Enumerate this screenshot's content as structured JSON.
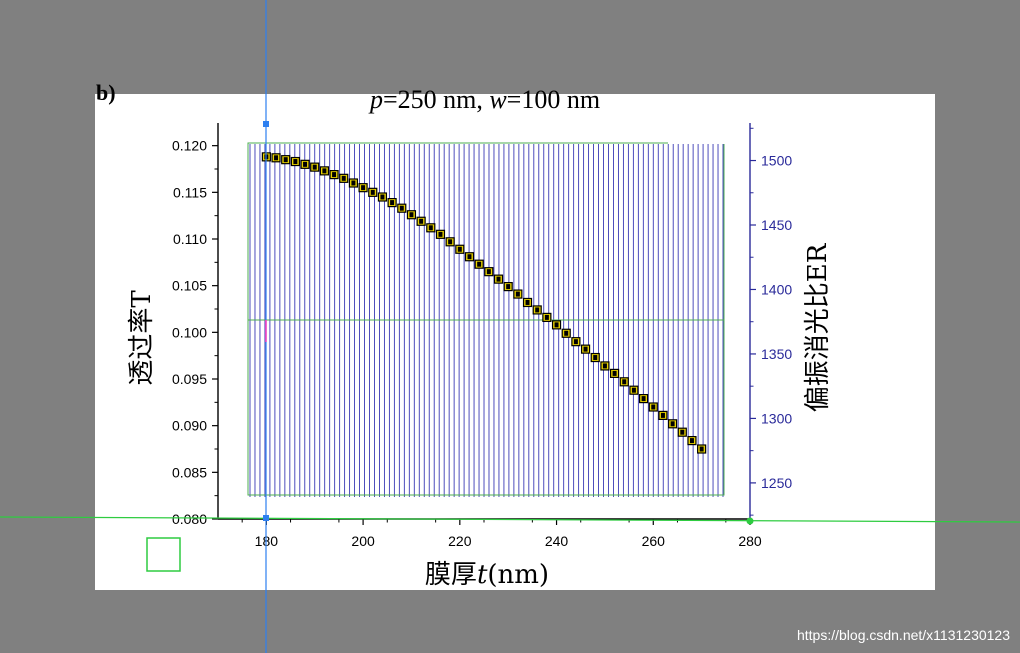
{
  "watermark": "https://blog.csdn.net/x1131230123",
  "corner_label": "b)",
  "chart_data": {
    "type": "scatter",
    "title": "p=250 nm, w=100 nm",
    "title_parts": [
      {
        "text": "p",
        "italic": true
      },
      {
        "text": "=250 nm, ",
        "italic": false
      },
      {
        "text": "w",
        "italic": true
      },
      {
        "text": "=100 nm",
        "italic": false
      }
    ],
    "xlabel_parts": [
      {
        "text": "膜厚",
        "italic": false
      },
      {
        "text": "t",
        "italic": true
      },
      {
        "text": "(nm)",
        "italic": false
      }
    ],
    "ylabel_left": "透过率T",
    "ylabel_right": "偏振消光比ER",
    "xlim": [
      170,
      280
    ],
    "ylim_left": [
      0.08,
      0.122
    ],
    "ylim_right": [
      1222,
      1526
    ],
    "xticks": [
      180,
      200,
      220,
      240,
      260,
      280
    ],
    "yticks_left": [
      "0.080",
      "0.085",
      "0.090",
      "0.095",
      "0.100",
      "0.105",
      "0.110",
      "0.115",
      "0.120"
    ],
    "yticks_right": [
      1250,
      1300,
      1350,
      1400,
      1450,
      1500
    ],
    "left_axis_color": "#000000",
    "right_axis_color": "#2a2a9a",
    "series": [
      {
        "axis": "left",
        "marker": "square",
        "color": "#000000",
        "x": [
          180,
          182,
          184,
          186,
          188,
          190,
          192,
          194,
          196,
          198,
          200,
          202,
          204,
          206,
          208,
          210,
          212,
          214,
          216,
          218,
          220,
          222,
          224,
          226,
          228,
          230,
          232,
          234,
          236,
          238,
          240,
          242,
          244,
          246,
          248,
          250,
          252,
          254,
          256,
          258,
          260,
          262,
          264,
          266,
          268,
          270
        ],
        "y": [
          0.1188,
          0.1187,
          0.1185,
          0.1183,
          0.118,
          0.1177,
          0.1173,
          0.1169,
          0.1165,
          0.116,
          0.1155,
          0.115,
          0.1145,
          0.1139,
          0.1133,
          0.1126,
          0.1119,
          0.1112,
          0.1105,
          0.1097,
          0.1089,
          0.1081,
          0.1073,
          0.1065,
          0.1057,
          0.1049,
          0.1041,
          0.1032,
          0.1024,
          0.1016,
          0.1008,
          0.0999,
          0.099,
          0.0982,
          0.0973,
          0.0964,
          0.0956,
          0.0947,
          0.0938,
          0.0929,
          0.092,
          0.0911,
          0.0902,
          0.0893,
          0.0884,
          0.0875
        ]
      }
    ],
    "er_bar_count": 95,
    "grid": false
  },
  "colors": {
    "background": "#808080",
    "figure_bg": "#ffffff",
    "hatch": "#3a3ab5",
    "box_outline": "#4caf50",
    "guide_blue": "#2d7ff0",
    "guide_green": "#2ecc40",
    "marker_fill": "#e8d200"
  }
}
